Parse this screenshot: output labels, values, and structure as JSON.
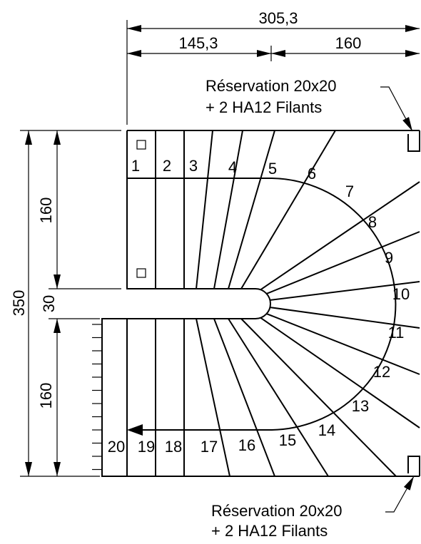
{
  "dimensions": {
    "total_width": "305,3",
    "left_width": "145,3",
    "right_width": "160",
    "total_height": "350",
    "top_flight": "160",
    "gap": "30",
    "bottom_flight": "160"
  },
  "annotations": [
    {
      "line1": "Réservation 20x20",
      "line2": "+ 2 HA12 Filants"
    },
    {
      "line1": "Réservation 20x20",
      "line2": "+ 2 HA12 Filants"
    }
  ],
  "steps": [
    "1",
    "2",
    "3",
    "4",
    "5",
    "6",
    "7",
    "8",
    "9",
    "10",
    "11",
    "12",
    "13",
    "14",
    "15",
    "16",
    "17",
    "18",
    "19",
    "20"
  ]
}
